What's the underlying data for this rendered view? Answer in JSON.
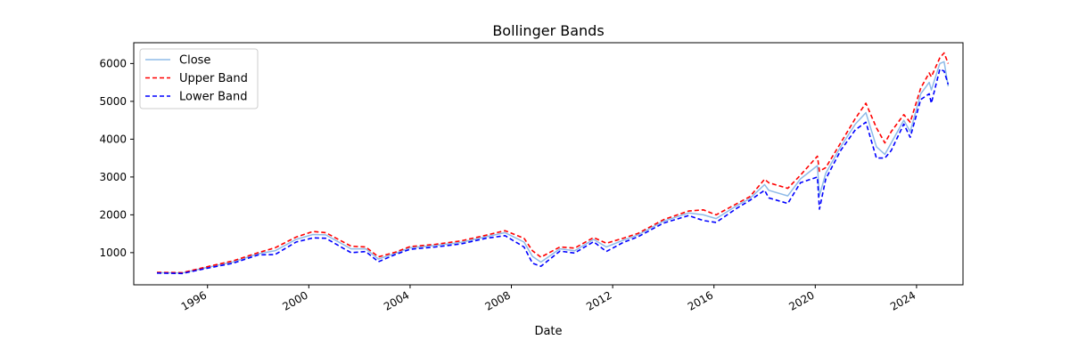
{
  "chart_data": {
    "type": "line",
    "title": "Bollinger Bands",
    "xlabel": "Date",
    "ylabel": "",
    "xlim": [
      "1993-02-01",
      "2025-11-01"
    ],
    "ylim": [
      150,
      6550
    ],
    "x_ticks": [
      "1996",
      "2000",
      "2004",
      "2008",
      "2012",
      "2016",
      "2020",
      "2024"
    ],
    "y_ticks": [
      1000,
      2000,
      3000,
      4000,
      5000,
      6000
    ],
    "grid": false,
    "legend": {
      "position": "top-left",
      "entries": [
        "Close",
        "Upper Band",
        "Lower Band"
      ]
    },
    "x": [
      "1994-01-01",
      "1995-01-01",
      "1996-01-01",
      "1997-01-01",
      "1998-01-01",
      "1998-09-01",
      "1999-07-01",
      "2000-03-01",
      "2000-09-01",
      "2001-09-01",
      "2002-04-01",
      "2002-10-01",
      "2003-06-01",
      "2004-01-01",
      "2005-01-01",
      "2006-01-01",
      "2007-01-01",
      "2007-10-01",
      "2008-07-01",
      "2008-11-01",
      "2009-03-01",
      "2009-12-01",
      "2010-07-01",
      "2011-04-01",
      "2011-10-01",
      "2012-06-01",
      "2013-01-01",
      "2014-01-01",
      "2015-01-01",
      "2015-08-01",
      "2016-02-01",
      "2016-12-01",
      "2017-06-01",
      "2018-01-01",
      "2018-03-01",
      "2018-12-01",
      "2019-06-01",
      "2020-02-01",
      "2020-03-01",
      "2020-06-01",
      "2021-01-01",
      "2021-08-01",
      "2022-01-01",
      "2022-06-01",
      "2022-10-01",
      "2023-01-01",
      "2023-07-01",
      "2023-10-01",
      "2024-03-01",
      "2024-07-01",
      "2024-08-01",
      "2024-12-01",
      "2025-02-01",
      "2025-04-01"
    ],
    "series": [
      {
        "name": "Close",
        "color": "#8fbbe8",
        "values": [
          470,
          460,
          610,
          750,
          970,
          1050,
          1350,
          1480,
          1470,
          1100,
          1100,
          830,
          980,
          1130,
          1190,
          1270,
          1420,
          1530,
          1280,
          900,
          750,
          1100,
          1050,
          1350,
          1150,
          1330,
          1470,
          1830,
          2050,
          2000,
          1900,
          2250,
          2430,
          2800,
          2650,
          2500,
          2950,
          3300,
          2500,
          3100,
          3800,
          4400,
          4700,
          3800,
          3600,
          3900,
          4500,
          4200,
          5200,
          5500,
          5300,
          6000,
          6050,
          5400
        ]
      },
      {
        "name": "Upper Band",
        "color": "#ff0000",
        "values": [
          480,
          470,
          630,
          780,
          1000,
          1130,
          1410,
          1560,
          1530,
          1170,
          1150,
          890,
          1010,
          1160,
          1220,
          1310,
          1460,
          1580,
          1380,
          1050,
          880,
          1150,
          1120,
          1400,
          1250,
          1380,
          1510,
          1870,
          2100,
          2130,
          2000,
          2300,
          2480,
          2940,
          2850,
          2700,
          3050,
          3550,
          3150,
          3250,
          3900,
          4550,
          4950,
          4300,
          3900,
          4200,
          4650,
          4450,
          5350,
          5750,
          5650,
          6150,
          6280,
          6000
        ]
      },
      {
        "name": "Lower Band",
        "color": "#0000ff",
        "values": [
          460,
          450,
          590,
          720,
          940,
          950,
          1280,
          1390,
          1380,
          1000,
          1030,
          760,
          950,
          1090,
          1150,
          1230,
          1380,
          1450,
          1150,
          720,
          640,
          1040,
          990,
          1290,
          1030,
          1270,
          1420,
          1780,
          1980,
          1850,
          1800,
          2180,
          2380,
          2650,
          2450,
          2300,
          2850,
          3000,
          2150,
          2950,
          3700,
          4250,
          4450,
          3500,
          3500,
          3700,
          4400,
          4050,
          5050,
          5200,
          4950,
          5850,
          5800,
          5450
        ]
      }
    ]
  }
}
